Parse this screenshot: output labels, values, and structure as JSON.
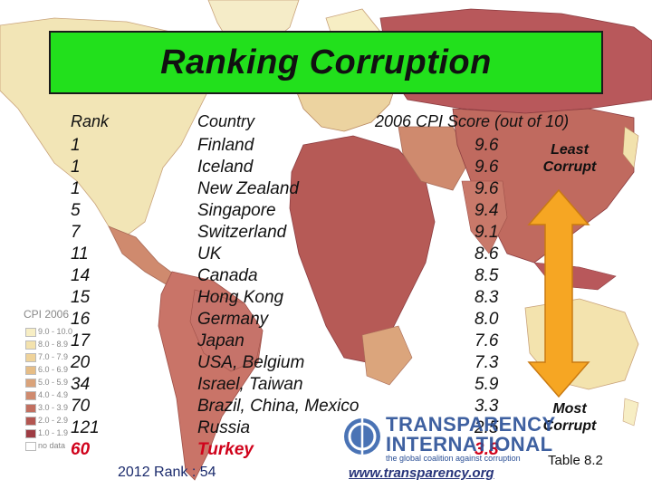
{
  "title": "Ranking Corruption",
  "headers": {
    "rank": "Rank",
    "country": "Country",
    "score": "2006 CPI Score (out of 10)"
  },
  "rows": [
    {
      "rank": "1",
      "country": "Finland",
      "score": "9.6"
    },
    {
      "rank": "1",
      "country": "Iceland",
      "score": "9.6"
    },
    {
      "rank": "1",
      "country": "New Zealand",
      "score": "9.6"
    },
    {
      "rank": "5",
      "country": "Singapore",
      "score": "9.4"
    },
    {
      "rank": "7",
      "country": "Switzerland",
      "score": "9.1"
    },
    {
      "rank": "11",
      "country": "UK",
      "score": "8.6"
    },
    {
      "rank": "14",
      "country": "Canada",
      "score": "8.5"
    },
    {
      "rank": "15",
      "country": "Hong Kong",
      "score": "8.3"
    },
    {
      "rank": "16",
      "country": "Germany",
      "score": "8.0"
    },
    {
      "rank": "17",
      "country": "Japan",
      "score": "7.6"
    },
    {
      "rank": "20",
      "country": "USA, Belgium",
      "score": "7.3"
    },
    {
      "rank": "34",
      "country": "Israel, Taiwan",
      "score": "5.9"
    },
    {
      "rank": "70",
      "country": "Brazil, China, Mexico",
      "score": "3.3"
    },
    {
      "rank": "121",
      "country": "Russia",
      "score": "2.5"
    },
    {
      "rank": "60",
      "country": "Turkey",
      "score": "3.8",
      "highlight": true
    }
  ],
  "least_label": "Least Corrupt",
  "most_label": "Most Corrupt",
  "legend": {
    "title": "CPI 2006",
    "items": [
      {
        "label": "9.0 - 10.0",
        "color": "#f7eec4"
      },
      {
        "label": "8.0 - 8.9",
        "color": "#f3e2ad"
      },
      {
        "label": "7.0 - 7.9",
        "color": "#efd39a"
      },
      {
        "label": "6.0 - 6.9",
        "color": "#e6bd86"
      },
      {
        "label": "5.0 - 5.9",
        "color": "#daa37a"
      },
      {
        "label": "4.0 - 4.9",
        "color": "#cf8a6e"
      },
      {
        "label": "3.0 - 3.9",
        "color": "#c26f60"
      },
      {
        "label": "2.0 - 2.9",
        "color": "#b35651"
      },
      {
        "label": "1.0 - 1.9",
        "color": "#9e3c43"
      },
      {
        "label": "no data",
        "color": "#ffffff"
      }
    ]
  },
  "logo": {
    "line1": "TRANSPARENCY",
    "line2": "INTERNATIONAL",
    "tagline": "the global coalition against corruption"
  },
  "url": "www.transparency.org",
  "table_ref": "Table 8.2",
  "rank_2012": "2012 Rank : 54",
  "colors": {
    "title_bg": "#22e01c",
    "arrow_fill": "#f6a623",
    "highlight": "#d0021b",
    "ocean": "#ffffff",
    "land_light": "#f2e4b4",
    "land_mid": "#dfae86",
    "land_dark": "#b8575a"
  }
}
